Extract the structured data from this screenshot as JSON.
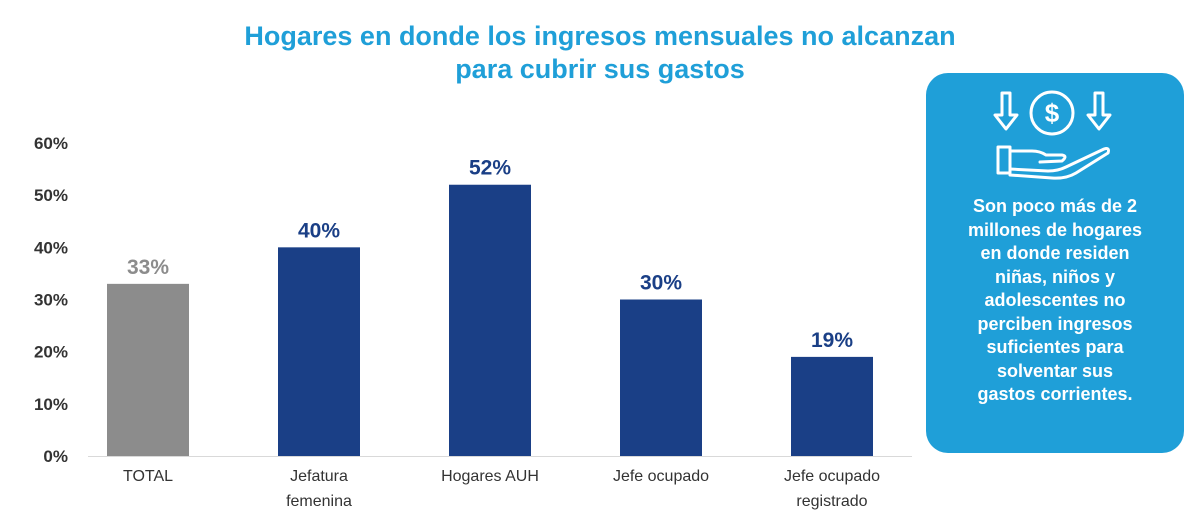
{
  "title": {
    "line1": "Hogares en donde los ingresos mensuales no alcanzan",
    "line2": "para cubrir sus gastos"
  },
  "colors": {
    "title": "#1f9fd8",
    "bar_total": "#8c8c8c",
    "bar_group": "#1a3f86",
    "label_total": "#8c8c8c",
    "label_group": "#1a3f86",
    "axis_text": "#333333",
    "panel": "#1f9fd8"
  },
  "chart_data": {
    "type": "bar",
    "title": "Hogares en donde los ingresos mensuales no alcanzan para cubrir sus gastos",
    "categories": [
      [
        "TOTAL"
      ],
      [
        "Jefatura",
        "femenina"
      ],
      [
        "Hogares AUH"
      ],
      [
        "Jefe ocupado"
      ],
      [
        "Jefe ocupado",
        "registrado"
      ]
    ],
    "values": [
      33,
      40,
      52,
      30,
      19
    ],
    "value_labels": [
      "33%",
      "40%",
      "52%",
      "30%",
      "19%"
    ],
    "y_ticks": [
      "0%",
      "10%",
      "20%",
      "30%",
      "40%",
      "50%",
      "60%"
    ],
    "ylim": [
      0,
      60
    ],
    "xlabel": "",
    "ylabel": "",
    "grid": false,
    "legend": "none"
  },
  "info_panel": {
    "icon": "money-hand-icon",
    "lines": [
      "Son poco más de 2",
      "millones de hogares",
      "en donde residen",
      "niñas, niños y",
      "adolescentes no",
      "perciben ingresos",
      "suficientes para",
      "solventar sus",
      "gastos corrientes."
    ]
  }
}
